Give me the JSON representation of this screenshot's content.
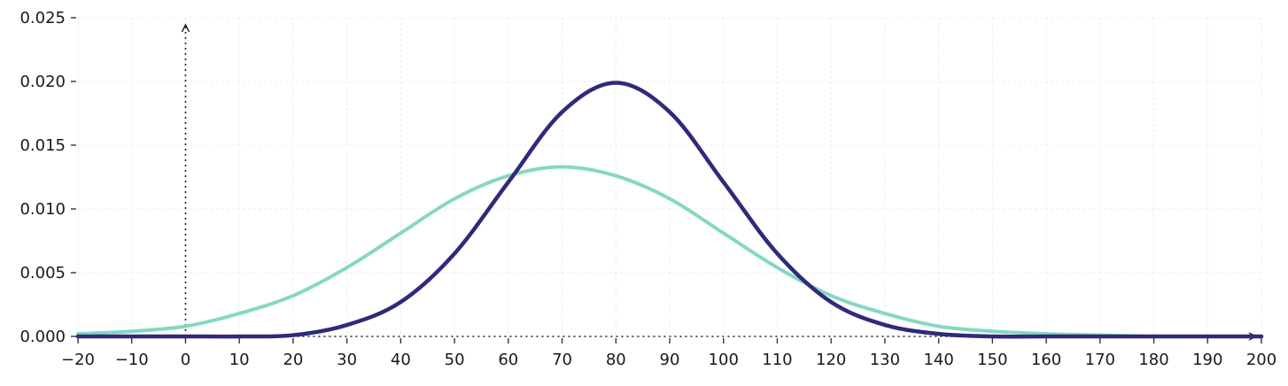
{
  "chart_data": {
    "type": "line",
    "title": "",
    "xlabel": "",
    "ylabel": "",
    "xlim": [
      -20,
      200
    ],
    "ylim": [
      0,
      0.025
    ],
    "x_ticks": [
      -20,
      -10,
      0,
      10,
      20,
      30,
      40,
      50,
      60,
      70,
      80,
      90,
      100,
      110,
      120,
      130,
      140,
      150,
      160,
      170,
      180,
      190,
      200
    ],
    "x_tick_labels": [
      "−20",
      "−10",
      "0",
      "10",
      "20",
      "30",
      "40",
      "50",
      "60",
      "70",
      "80",
      "90",
      "100",
      "110",
      "120",
      "130",
      "140",
      "150",
      "160",
      "170",
      "180",
      "190",
      "200"
    ],
    "y_ticks": [
      0,
      0.005,
      0.01,
      0.015,
      0.02,
      0.025
    ],
    "y_tick_labels": [
      "0.000",
      "0.005",
      "0.010",
      "0.015",
      "0.020",
      "0.025"
    ],
    "grid": true,
    "legend": "none",
    "x": [
      -20,
      -10,
      0,
      10,
      20,
      30,
      40,
      50,
      60,
      70,
      80,
      90,
      100,
      110,
      120,
      130,
      140,
      150,
      160,
      170,
      180,
      190,
      200
    ],
    "series": [
      {
        "color": "#2e2b7a",
        "values": [
          0.0,
          0.0,
          0.0,
          0.0,
          0.0001,
          0.0009,
          0.0027,
          0.0065,
          0.0121,
          0.0176,
          0.0199,
          0.0176,
          0.0121,
          0.0065,
          0.0027,
          0.0009,
          0.0002,
          0.0,
          0.0,
          0.0,
          0.0,
          0.0,
          0.0
        ]
      },
      {
        "color": "#86d7c3",
        "values": [
          0.0002,
          0.0004,
          0.0008,
          0.0018,
          0.0032,
          0.0054,
          0.0081,
          0.0108,
          0.0126,
          0.0133,
          0.0126,
          0.0108,
          0.0081,
          0.0054,
          0.0032,
          0.0018,
          0.0008,
          0.0004,
          0.0002,
          0.0001,
          0.0,
          0.0,
          0.0
        ]
      }
    ]
  }
}
